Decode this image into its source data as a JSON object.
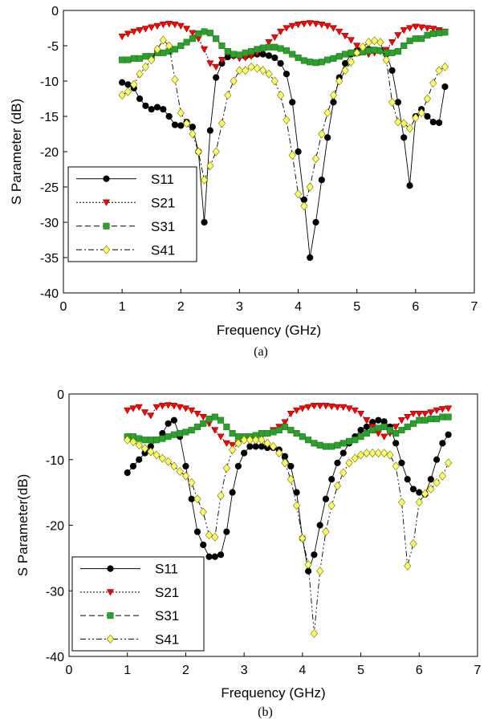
{
  "chart_data": [
    {
      "type": "line",
      "caption": "(a)",
      "xlabel": "Frequency (GHz)",
      "ylabel": "S Parameter (dB)",
      "xlim": [
        0,
        7
      ],
      "ylim": [
        -40,
        0
      ],
      "xticks": [
        "0",
        "1",
        "2",
        "3",
        "4",
        "5",
        "6",
        "7"
      ],
      "yticks": [
        "0",
        "-5",
        "-10",
        "-15",
        "-20",
        "-25",
        "-30",
        "-35",
        "-40"
      ],
      "grid": false,
      "legend_position": "bottom-left",
      "series": [
        {
          "name": "S11",
          "marker": "circle",
          "dash": "",
          "color": "#000000",
          "x": [
            1.0,
            1.1,
            1.2,
            1.3,
            1.4,
            1.5,
            1.6,
            1.7,
            1.8,
            1.9,
            2.0,
            2.1,
            2.2,
            2.3,
            2.4,
            2.5,
            2.6,
            2.7,
            2.8,
            2.9,
            3.0,
            3.1,
            3.2,
            3.3,
            3.4,
            3.5,
            3.6,
            3.7,
            3.8,
            3.9,
            4.0,
            4.1,
            4.2,
            4.3,
            4.4,
            4.5,
            4.6,
            4.7,
            4.8,
            4.9,
            5.0,
            5.1,
            5.2,
            5.3,
            5.4,
            5.5,
            5.6,
            5.7,
            5.8,
            5.9,
            6.0,
            6.1,
            6.2,
            6.3,
            6.4,
            6.5
          ],
          "values": [
            -10.2,
            -10.5,
            -11.0,
            -12.5,
            -13.5,
            -14.0,
            -13.7,
            -14.0,
            -15.0,
            -16.2,
            -16.3,
            -15.8,
            -16.5,
            -20.0,
            -30.0,
            -17.0,
            -9.5,
            -7.5,
            -6.6,
            -6.4,
            -6.4,
            -6.5,
            -6.3,
            -6.2,
            -6.2,
            -6.4,
            -6.7,
            -7.5,
            -9.0,
            -13.0,
            -20.0,
            -26.8,
            -35.0,
            -30.0,
            -24.0,
            -18.0,
            -13.0,
            -9.5,
            -7.5,
            -6.2,
            -5.7,
            -5.5,
            -5.5,
            -5.7,
            -5.7,
            -6.2,
            -8.5,
            -13.0,
            -18.0,
            -24.8,
            -15.0,
            -14.0,
            -15.0,
            -15.8,
            -15.9,
            -10.8
          ]
        },
        {
          "name": "S21",
          "marker": "triangle-down",
          "dash": "2,2",
          "color": "#ff0000",
          "x": [
            1.0,
            1.1,
            1.2,
            1.3,
            1.4,
            1.5,
            1.6,
            1.7,
            1.8,
            1.9,
            2.0,
            2.1,
            2.2,
            2.3,
            2.4,
            2.5,
            2.6,
            2.7,
            2.8,
            2.9,
            3.0,
            3.1,
            3.2,
            3.3,
            3.4,
            3.5,
            3.6,
            3.7,
            3.8,
            3.9,
            4.0,
            4.1,
            4.2,
            4.3,
            4.4,
            4.5,
            4.6,
            4.7,
            4.8,
            4.9,
            5.0,
            5.1,
            5.2,
            5.3,
            5.4,
            5.5,
            5.6,
            5.7,
            5.8,
            5.9,
            6.0,
            6.1,
            6.2,
            6.3,
            6.4,
            6.5
          ],
          "values": [
            -3.7,
            -3.3,
            -3.0,
            -2.8,
            -2.6,
            -2.4,
            -2.2,
            -2.0,
            -1.9,
            -2.0,
            -2.2,
            -2.6,
            -3.2,
            -4.0,
            -5.5,
            -7.5,
            -8.0,
            -7.0,
            -6.0,
            -6.5,
            -6.8,
            -6.7,
            -6.5,
            -6.0,
            -5.5,
            -4.5,
            -3.8,
            -3.0,
            -2.5,
            -2.2,
            -2.0,
            -1.9,
            -1.8,
            -1.9,
            -2.0,
            -2.2,
            -2.5,
            -3.0,
            -3.6,
            -4.2,
            -5.0,
            -5.8,
            -6.2,
            -6.0,
            -5.8,
            -5.6,
            -4.5,
            -3.5,
            -2.8,
            -2.5,
            -2.3,
            -2.4,
            -2.5,
            -2.6,
            -2.8,
            -3.0
          ]
        },
        {
          "name": "S31",
          "marker": "square",
          "dash": "7,4",
          "color": "#2ca02c",
          "x": [
            1.0,
            1.1,
            1.2,
            1.3,
            1.4,
            1.5,
            1.6,
            1.7,
            1.8,
            1.9,
            2.0,
            2.1,
            2.2,
            2.3,
            2.4,
            2.5,
            2.6,
            2.7,
            2.8,
            2.9,
            3.0,
            3.1,
            3.2,
            3.3,
            3.4,
            3.5,
            3.6,
            3.7,
            3.8,
            3.9,
            4.0,
            4.1,
            4.2,
            4.3,
            4.4,
            4.5,
            4.6,
            4.7,
            4.8,
            4.9,
            5.0,
            5.1,
            5.2,
            5.3,
            5.4,
            5.5,
            5.6,
            5.7,
            5.8,
            5.9,
            6.0,
            6.1,
            6.2,
            6.3,
            6.4,
            6.5
          ],
          "values": [
            -7.0,
            -7.0,
            -6.8,
            -6.8,
            -6.5,
            -6.5,
            -6.0,
            -6.0,
            -5.8,
            -5.5,
            -5.0,
            -4.5,
            -4.0,
            -3.3,
            -3.0,
            -3.2,
            -4.0,
            -5.0,
            -5.8,
            -6.2,
            -6.3,
            -6.0,
            -5.8,
            -5.5,
            -5.3,
            -5.2,
            -5.2,
            -5.4,
            -5.7,
            -6.2,
            -6.7,
            -7.1,
            -7.3,
            -7.4,
            -7.3,
            -7.0,
            -6.8,
            -6.5,
            -6.2,
            -6.0,
            -6.0,
            -5.9,
            -5.7,
            -5.6,
            -5.7,
            -6.0,
            -6.0,
            -5.8,
            -5.0,
            -4.3,
            -4.0,
            -4.0,
            -3.5,
            -3.3,
            -3.2,
            -3.1
          ]
        },
        {
          "name": "S41",
          "marker": "diamond",
          "dash": "7,3,2,3",
          "color": "#ffff66",
          "x": [
            1.0,
            1.1,
            1.2,
            1.3,
            1.4,
            1.5,
            1.6,
            1.7,
            1.8,
            1.9,
            2.0,
            2.1,
            2.2,
            2.3,
            2.4,
            2.5,
            2.6,
            2.7,
            2.8,
            2.9,
            3.0,
            3.1,
            3.2,
            3.3,
            3.4,
            3.5,
            3.6,
            3.7,
            3.8,
            3.9,
            4.0,
            4.1,
            4.2,
            4.3,
            4.4,
            4.5,
            4.6,
            4.7,
            4.8,
            4.9,
            5.0,
            5.1,
            5.2,
            5.3,
            5.4,
            5.5,
            5.6,
            5.7,
            5.8,
            5.9,
            6.0,
            6.1,
            6.2,
            6.3,
            6.4,
            6.5
          ],
          "values": [
            -12.0,
            -11.5,
            -10.5,
            -9.0,
            -8.0,
            -7.0,
            -5.5,
            -4.2,
            -5.0,
            -9.8,
            -14.5,
            -16.0,
            -17.5,
            -20.0,
            -24.0,
            -22.0,
            -20.0,
            -16.0,
            -12.0,
            -10.0,
            -8.5,
            -8.5,
            -8.0,
            -8.2,
            -8.5,
            -9.0,
            -10.0,
            -12.0,
            -15.5,
            -20.5,
            -26.0,
            -27.7,
            -25.0,
            -21.0,
            -17.5,
            -14.5,
            -12.0,
            -10.0,
            -8.5,
            -7.3,
            -6.0,
            -5.2,
            -4.5,
            -4.3,
            -4.5,
            -7.0,
            -13.0,
            -15.8,
            -16.0,
            -16.7,
            -15.2,
            -14.5,
            -12.5,
            -10.3,
            -8.5,
            -8.0
          ]
        }
      ]
    },
    {
      "type": "line",
      "caption": "(b)",
      "xlabel": "Frequency (GHz)",
      "ylabel": "S Parameter(dB)",
      "xlim": [
        0,
        7
      ],
      "ylim": [
        -40,
        0
      ],
      "xticks": [
        "0",
        "1",
        "2",
        "3",
        "4",
        "5",
        "6",
        "7"
      ],
      "yticks": [
        "0",
        "-10",
        "-20",
        "-30",
        "-40"
      ],
      "grid": false,
      "legend_position": "bottom-left",
      "series": [
        {
          "name": "S11",
          "marker": "circle",
          "dash": "",
          "color": "#000000",
          "x": [
            1.0,
            1.1,
            1.2,
            1.3,
            1.4,
            1.5,
            1.6,
            1.7,
            1.8,
            1.9,
            2.0,
            2.1,
            2.2,
            2.3,
            2.4,
            2.5,
            2.6,
            2.7,
            2.8,
            2.9,
            3.0,
            3.1,
            3.2,
            3.3,
            3.4,
            3.5,
            3.6,
            3.7,
            3.8,
            3.9,
            4.0,
            4.1,
            4.2,
            4.3,
            4.4,
            4.5,
            4.6,
            4.7,
            4.8,
            4.9,
            5.0,
            5.1,
            5.2,
            5.3,
            5.4,
            5.5,
            5.6,
            5.7,
            5.8,
            5.9,
            6.0,
            6.1,
            6.2,
            6.3,
            6.4,
            6.5
          ],
          "values": [
            -12.0,
            -11.0,
            -10.0,
            -9.0,
            -8.0,
            -7.0,
            -6.0,
            -4.5,
            -4.0,
            -6.5,
            -11.0,
            -16.0,
            -21.0,
            -23.0,
            -24.8,
            -24.8,
            -24.5,
            -21.0,
            -15.0,
            -11.0,
            -9.0,
            -8.0,
            -8.0,
            -8.0,
            -8.2,
            -8.2,
            -8.5,
            -9.5,
            -11.0,
            -15.0,
            -22.0,
            -27.0,
            -24.5,
            -20.0,
            -16.0,
            -13.0,
            -10.5,
            -9.0,
            -7.5,
            -6.5,
            -5.5,
            -5.0,
            -4.3,
            -4.0,
            -4.2,
            -5.0,
            -7.5,
            -10.5,
            -13.0,
            -14.5,
            -15.0,
            -15.3,
            -13.0,
            -10.0,
            -7.5,
            -6.2
          ]
        },
        {
          "name": "S21",
          "marker": "triangle-down",
          "dash": "2,2",
          "color": "#ff0000",
          "x": [
            1.0,
            1.1,
            1.2,
            1.3,
            1.4,
            1.5,
            1.6,
            1.7,
            1.8,
            1.9,
            2.0,
            2.1,
            2.2,
            2.3,
            2.4,
            2.5,
            2.6,
            2.7,
            2.8,
            2.9,
            3.0,
            3.1,
            3.2,
            3.3,
            3.4,
            3.5,
            3.6,
            3.7,
            3.8,
            3.9,
            4.0,
            4.1,
            4.2,
            4.3,
            4.4,
            4.5,
            4.6,
            4.7,
            4.8,
            4.9,
            5.0,
            5.1,
            5.2,
            5.3,
            5.4,
            5.5,
            5.6,
            5.7,
            5.8,
            5.9,
            6.0,
            6.1,
            6.2,
            6.3,
            6.4,
            6.5
          ],
          "values": [
            -2.5,
            -2.2,
            -2.0,
            -2.8,
            -3.3,
            -2.0,
            -1.8,
            -1.7,
            -1.8,
            -2.0,
            -2.2,
            -2.5,
            -3.0,
            -3.5,
            -4.5,
            -5.5,
            -6.5,
            -7.5,
            -7.8,
            -7.5,
            -7.0,
            -6.8,
            -6.5,
            -6.5,
            -6.0,
            -5.5,
            -5.0,
            -4.3,
            -3.0,
            -2.5,
            -2.2,
            -2.0,
            -1.8,
            -1.8,
            -1.8,
            -1.9,
            -2.0,
            -2.0,
            -2.2,
            -2.5,
            -3.0,
            -4.0,
            -5.0,
            -6.0,
            -6.5,
            -6.0,
            -5.0,
            -4.0,
            -3.5,
            -3.0,
            -3.0,
            -3.0,
            -2.8,
            -2.5,
            -2.3,
            -2.2
          ]
        },
        {
          "name": "S31",
          "marker": "square",
          "dash": "7,4",
          "color": "#2ca02c",
          "x": [
            1.0,
            1.1,
            1.2,
            1.3,
            1.4,
            1.5,
            1.6,
            1.7,
            1.8,
            1.9,
            2.0,
            2.1,
            2.2,
            2.3,
            2.4,
            2.5,
            2.6,
            2.7,
            2.8,
            2.9,
            3.0,
            3.1,
            3.2,
            3.3,
            3.4,
            3.5,
            3.6,
            3.7,
            3.8,
            3.9,
            4.0,
            4.1,
            4.2,
            4.3,
            4.4,
            4.5,
            4.6,
            4.7,
            4.8,
            4.9,
            5.0,
            5.1,
            5.2,
            5.3,
            5.4,
            5.5,
            5.6,
            5.7,
            5.8,
            5.9,
            6.0,
            6.1,
            6.2,
            6.3,
            6.4,
            6.5
          ],
          "values": [
            -6.5,
            -6.5,
            -6.8,
            -7.0,
            -7.0,
            -7.0,
            -6.8,
            -6.5,
            -6.2,
            -6.0,
            -5.8,
            -5.5,
            -5.0,
            -4.5,
            -3.8,
            -3.5,
            -4.0,
            -5.0,
            -6.0,
            -6.5,
            -6.5,
            -6.5,
            -6.3,
            -6.0,
            -6.0,
            -5.8,
            -5.5,
            -5.0,
            -5.5,
            -6.0,
            -6.5,
            -7.0,
            -7.5,
            -7.8,
            -8.0,
            -8.0,
            -7.8,
            -7.5,
            -7.2,
            -7.0,
            -6.5,
            -6.0,
            -5.5,
            -5.2,
            -5.0,
            -5.5,
            -6.0,
            -5.5,
            -5.0,
            -4.5,
            -4.0,
            -4.0,
            -3.8,
            -3.8,
            -3.5,
            -3.5
          ]
        },
        {
          "name": "S41",
          "marker": "diamond",
          "dash": "7,3,2,3,2,3",
          "color": "#ffff66",
          "x": [
            1.0,
            1.1,
            1.2,
            1.3,
            1.4,
            1.5,
            1.6,
            1.7,
            1.8,
            1.9,
            2.0,
            2.1,
            2.2,
            2.3,
            2.4,
            2.5,
            2.6,
            2.7,
            2.8,
            2.9,
            3.0,
            3.1,
            3.2,
            3.3,
            3.4,
            3.5,
            3.6,
            3.7,
            3.8,
            3.9,
            4.0,
            4.1,
            4.2,
            4.3,
            4.4,
            4.5,
            4.6,
            4.7,
            4.8,
            4.9,
            5.0,
            5.1,
            5.2,
            5.3,
            5.4,
            5.5,
            5.6,
            5.7,
            5.8,
            5.9,
            6.0,
            6.1,
            6.2,
            6.3,
            6.4,
            6.5
          ],
          "values": [
            -7.0,
            -7.3,
            -7.8,
            -8.3,
            -8.8,
            -9.3,
            -9.8,
            -10.3,
            -11.0,
            -11.8,
            -12.5,
            -13.5,
            -16.0,
            -18.0,
            -21.5,
            -21.8,
            -15.5,
            -11.3,
            -8.5,
            -7.5,
            -7.0,
            -7.0,
            -7.0,
            -7.0,
            -7.5,
            -8.0,
            -9.0,
            -10.5,
            -13.0,
            -17.0,
            -22.0,
            -26.0,
            -36.5,
            -27.0,
            -21.0,
            -17.0,
            -14.0,
            -12.0,
            -10.5,
            -9.8,
            -9.3,
            -9.0,
            -9.0,
            -9.0,
            -9.0,
            -9.3,
            -11.0,
            -16.5,
            -26.2,
            -22.8,
            -16.5,
            -15.2,
            -14.5,
            -13.5,
            -12.5,
            -10.5
          ]
        }
      ]
    }
  ]
}
